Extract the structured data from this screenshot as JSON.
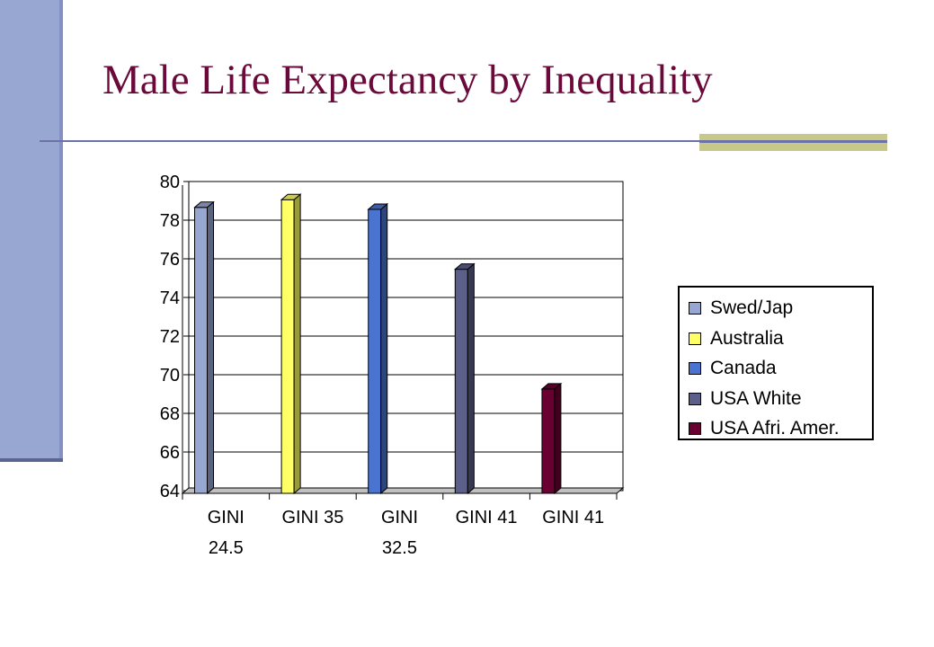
{
  "slide": {
    "title": "Male Life Expectancy by Inequality"
  },
  "colors": {
    "title": "#6b0a3a",
    "accent_bar": "#98a6d2",
    "rule": "#6a72a8",
    "rule_block": "#c8c88a"
  },
  "chart_data": {
    "type": "bar",
    "categories": [
      [
        "GINI",
        "24.5"
      ],
      [
        "GINI 35"
      ],
      [
        "GINI",
        "32.5"
      ],
      [
        "GINI 41"
      ],
      [
        "GINI 41"
      ]
    ],
    "series": [
      {
        "name": "Swed/Jap",
        "color": "#98a6d2",
        "values": [
          78.8,
          null,
          null,
          null,
          null
        ]
      },
      {
        "name": "Australia",
        "color": "#ffff66",
        "values": [
          null,
          79.2,
          null,
          null,
          null
        ]
      },
      {
        "name": "Canada",
        "color": "#4a74d0",
        "values": [
          null,
          null,
          78.7,
          null,
          null
        ]
      },
      {
        "name": "USA White",
        "color": "#5c5f8a",
        "values": [
          null,
          null,
          null,
          75.6,
          null
        ]
      },
      {
        "name": "USA Afri. Amer.",
        "color": "#6a0032",
        "values": [
          null,
          null,
          null,
          null,
          69.4
        ]
      }
    ],
    "ylim": [
      64,
      80
    ],
    "yticks": [
      80,
      78,
      76,
      74,
      72,
      70,
      68,
      66,
      64
    ],
    "grid": true,
    "legend_position": "right"
  }
}
